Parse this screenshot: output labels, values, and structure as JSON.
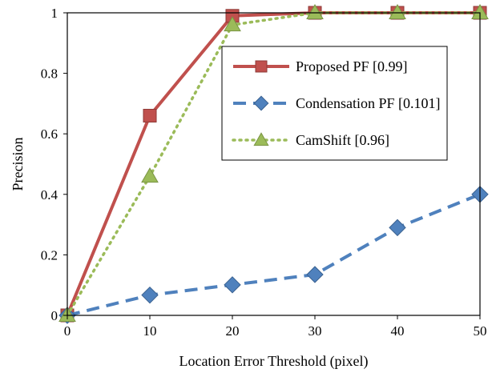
{
  "chart_data": {
    "type": "line",
    "xlabel": "Location Error Threshold (pixel)",
    "ylabel": "Precision",
    "xlim": [
      0,
      50
    ],
    "ylim": [
      0,
      1
    ],
    "x_ticks": [
      "0",
      "10",
      "20",
      "30",
      "40",
      "50"
    ],
    "y_ticks": [
      "0",
      "0.2",
      "0.4",
      "0.6",
      "0.8",
      "1"
    ],
    "grid": false,
    "legend_position": "inside-top-right",
    "x": [
      0,
      10,
      20,
      30,
      40,
      50
    ],
    "series": [
      {
        "name": "Proposed PF [0.99]",
        "values": [
          0,
          0.66,
          0.99,
          1.0,
          1.0,
          1.0
        ],
        "color": "#c0504d",
        "line_style": "solid",
        "marker": "square"
      },
      {
        "name": "Condensation PF [0.101]",
        "values": [
          0,
          0.067,
          0.101,
          0.135,
          0.29,
          0.4
        ],
        "color": "#4f81bd",
        "line_style": "dashed",
        "marker": "diamond"
      },
      {
        "name": "CamShift [0.96]",
        "values": [
          0,
          0.46,
          0.96,
          1.0,
          1.0,
          1.0
        ],
        "color": "#9bbb59",
        "line_style": "dotted",
        "marker": "triangle"
      }
    ]
  }
}
